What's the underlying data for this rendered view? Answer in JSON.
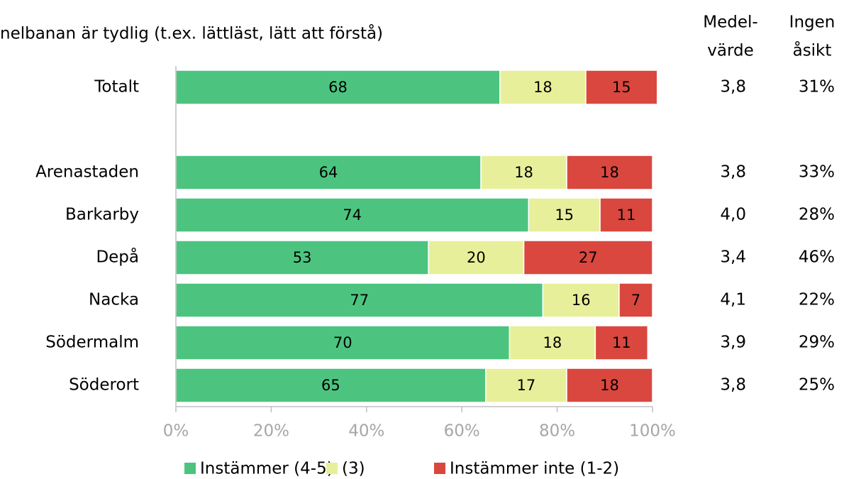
{
  "chart_data": {
    "type": "bar",
    "orientation": "horizontal",
    "stacked": true,
    "title": "nelbanan är tydlig (t.ex. lättläst, lätt att förstå)",
    "categories": [
      "Totalt",
      null,
      "Arenastaden",
      "Barkarby",
      "Depå",
      "Nacka",
      "Södermalm",
      "Söderort"
    ],
    "series": [
      {
        "name": "Instämmer (4-5)",
        "color": "#4cc47f",
        "values": [
          68,
          null,
          64,
          74,
          53,
          77,
          70,
          65
        ]
      },
      {
        "name": "(3)",
        "color": "#e8ef9a",
        "values": [
          18,
          null,
          18,
          15,
          20,
          16,
          18,
          17
        ]
      },
      {
        "name": "Instämmer inte (1-2)",
        "color": "#d9473f",
        "values": [
          15,
          null,
          18,
          11,
          27,
          7,
          11,
          18
        ]
      }
    ],
    "xlim": [
      0,
      100
    ],
    "xticks": [
      {
        "value": 0,
        "label": "0%"
      },
      {
        "value": 20,
        "label": "20%"
      },
      {
        "value": 40,
        "label": "40%"
      },
      {
        "value": 60,
        "label": "60%"
      },
      {
        "value": 80,
        "label": "80%"
      },
      {
        "value": 100,
        "label": "100%"
      }
    ],
    "legend": "bottom",
    "columns": [
      {
        "name": [
          "Medel-",
          "värde"
        ],
        "values": [
          3.8,
          null,
          3.8,
          4.0,
          3.4,
          4.1,
          3.9,
          3.8
        ],
        "value_labels": [
          "3,8",
          null,
          "3,8",
          "4,0",
          "3,4",
          "4,1",
          "3,9",
          "3,8"
        ]
      },
      {
        "name": [
          "Ingen",
          "åsikt"
        ],
        "values": [
          31,
          null,
          33,
          28,
          46,
          22,
          29,
          25
        ],
        "value_labels": [
          "31%",
          null,
          "33%",
          "28%",
          "46%",
          "22%",
          "29%",
          "25%"
        ]
      }
    ]
  }
}
